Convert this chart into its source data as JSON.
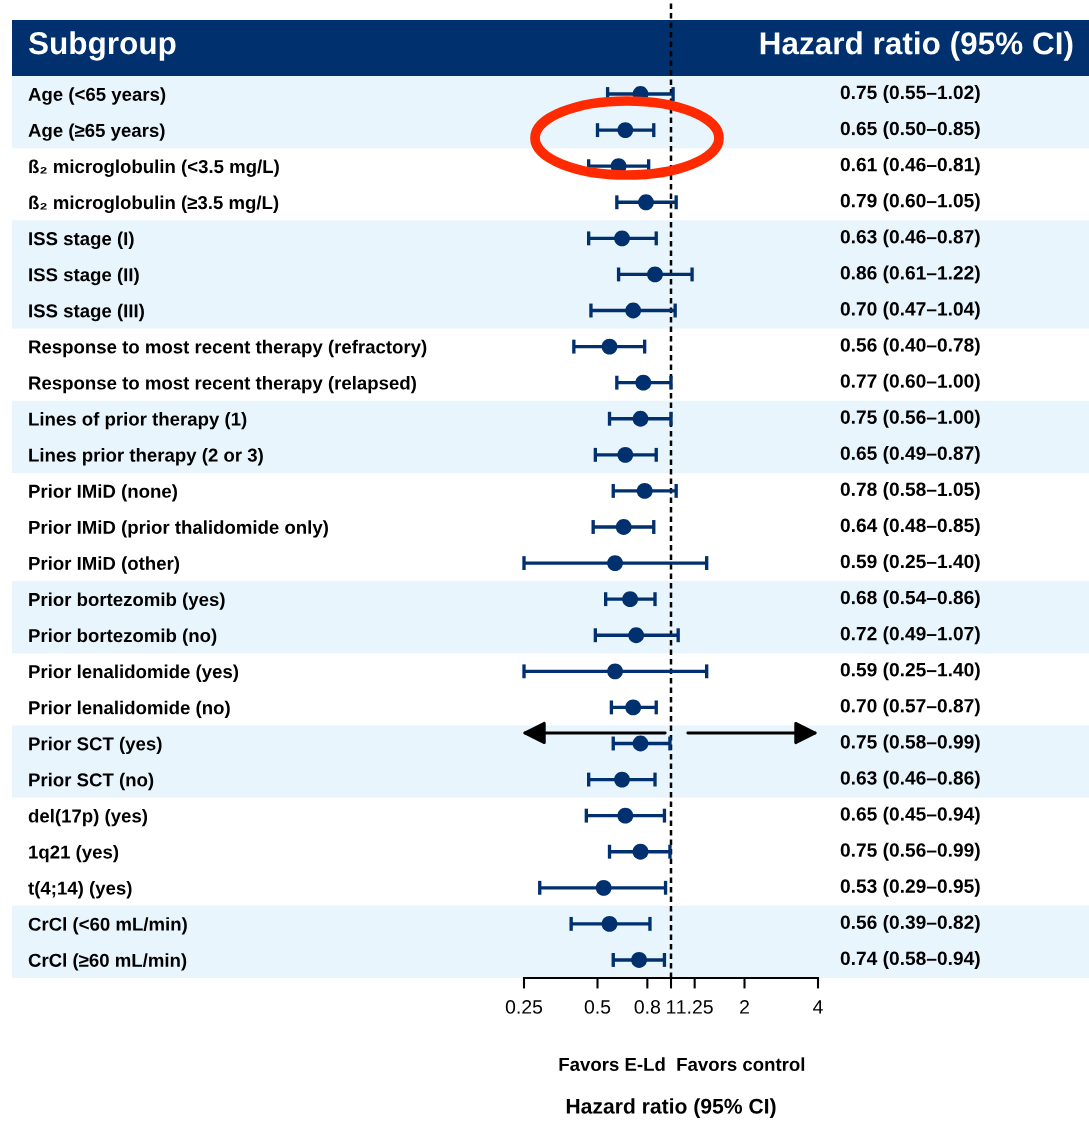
{
  "chart_data": {
    "type": "scatter",
    "orientation": "horizontal",
    "marker": "circle",
    "color": "#00306e",
    "log": "x",
    "categories": [
      "Age (<65 years)",
      "Age (≥65 years)",
      "ß₂ microglobulin (<3.5 mg/L)",
      "ß₂ microglobulin (≥3.5 mg/L)",
      "ISS stage (I)",
      "ISS stage (II)",
      "ISS stage (III)",
      "Response to most recent therapy (refractory)",
      "Response to most recent therapy (relapsed)",
      "Lines of prior therapy (1)",
      "Lines prior therapy (2 or 3)",
      "Prior IMiD (none)",
      "Prior IMiD (prior thalidomide only)",
      "Prior IMiD (other)",
      "Prior bortezomib (yes)",
      "Prior bortezomib (no)",
      "Prior lenalidomide (yes)",
      "Prior lenalidomide (no)",
      "Prior SCT (yes)",
      "Prior SCT (no)",
      "del(17p) (yes)",
      "1q21 (yes)",
      "t(4;14) (yes)",
      "CrCl (<60 mL/min)",
      "CrCl (≥60 mL/min)"
    ],
    "values": [
      0.75,
      0.65,
      0.61,
      0.79,
      0.63,
      0.86,
      0.7,
      0.56,
      0.77,
      0.75,
      0.65,
      0.78,
      0.64,
      0.59,
      0.68,
      0.72,
      0.59,
      0.7,
      0.75,
      0.63,
      0.65,
      0.75,
      0.53,
      0.56,
      0.74
    ],
    "errors": [
      [
        0.55,
        1.02
      ],
      [
        0.5,
        0.85
      ],
      [
        0.46,
        0.81
      ],
      [
        0.6,
        1.05
      ],
      [
        0.46,
        0.87
      ],
      [
        0.61,
        1.22
      ],
      [
        0.47,
        1.04
      ],
      [
        0.4,
        0.78
      ],
      [
        0.6,
        1.0
      ],
      [
        0.56,
        1.0
      ],
      [
        0.49,
        0.87
      ],
      [
        0.58,
        1.05
      ],
      [
        0.48,
        0.85
      ],
      [
        0.25,
        1.4
      ],
      [
        0.54,
        0.86
      ],
      [
        0.49,
        1.07
      ],
      [
        0.25,
        1.4
      ],
      [
        0.57,
        0.87
      ],
      [
        0.58,
        0.99
      ],
      [
        0.46,
        0.86
      ],
      [
        0.45,
        0.94
      ],
      [
        0.56,
        0.99
      ],
      [
        0.29,
        0.95
      ],
      [
        0.39,
        0.82
      ],
      [
        0.58,
        0.94
      ]
    ],
    "value_labels": [
      "0.75 (0.55–1.02)",
      "0.65 (0.50–0.85)",
      "0.61 (0.46–0.81)",
      "0.79 (0.60–1.05)",
      "0.63 (0.46–0.87)",
      "0.86 (0.61–1.22)",
      "0.70 (0.47–1.04)",
      "0.56 (0.40–0.78)",
      "0.77 (0.60–1.00)",
      "0.75 (0.56–1.00)",
      "0.65 (0.49–0.87)",
      "0.78 (0.58–1.05)",
      "0.64 (0.48–0.85)",
      "0.59 (0.25–1.40)",
      "0.68 (0.54–0.86)",
      "0.72 (0.49–1.07)",
      "0.59 (0.25–1.40)",
      "0.70 (0.57–0.87)",
      "0.75 (0.58–0.99)",
      "0.63 (0.46–0.86)",
      "0.65 (0.45–0.94)",
      "0.75 (0.56–0.99)",
      "0.53 (0.29–0.95)",
      "0.56 (0.39–0.82)",
      "0.74 (0.58–0.94)"
    ],
    "xlim": [
      0.25,
      4
    ],
    "xticks": [
      0.25,
      0.5,
      0.8,
      1,
      1.25,
      2,
      4
    ],
    "xlabel": "Hazard ratio (95% CI)",
    "annotations": [
      "Subgroup",
      "Hazard ratio (95% CI)",
      "Favors E-Ld",
      "Favors control"
    ],
    "ref_lines": [
      {
        "axis": "x",
        "value": 1,
        "color": "#000000",
        "line_style": "dashed"
      }
    ],
    "bands": [
      {
        "axis": "y",
        "from": "Age (<65 years)",
        "to": "Age (≥65 years)",
        "color": "#e8f5fd"
      },
      {
        "axis": "y",
        "from": "ISS stage (I)",
        "to": "ISS stage (III)",
        "color": "#e8f5fd"
      },
      {
        "axis": "y",
        "from": "Lines of prior therapy (1)",
        "to": "Lines prior therapy (2 or 3)",
        "color": "#e8f5fd"
      },
      {
        "axis": "y",
        "from": "Prior bortezomib (yes)",
        "to": "Prior bortezomib (no)",
        "color": "#e8f5fd"
      },
      {
        "axis": "y",
        "from": "Prior SCT (yes)",
        "to": "Prior SCT (no)",
        "color": "#e8f5fd"
      },
      {
        "axis": "y",
        "from": "CrCl (<60 mL/min)",
        "to": "CrCl (≥60 mL/min)",
        "color": "#e8f5fd"
      }
    ]
  }
}
